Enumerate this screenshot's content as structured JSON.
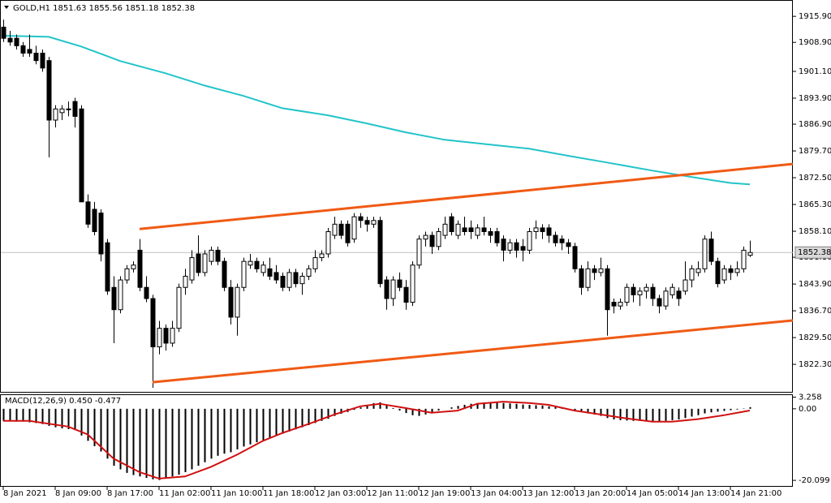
{
  "chart_data": [
    {
      "type": "candlestick",
      "title": "GOLD,H1  1851.63 1855.56 1851.18 1852.38",
      "up_color": "#ffffff",
      "down_color": "#000000",
      "edge_color": "#000000",
      "ohlc": [
        [
          1913,
          1915,
          1909,
          1910
        ],
        [
          1910,
          1912,
          1908,
          1909
        ],
        [
          1910,
          1911,
          1907,
          1908
        ],
        [
          1908,
          1909,
          1905,
          1906
        ],
        [
          1907,
          1911,
          1905,
          1906
        ],
        [
          1906,
          1908,
          1903,
          1904
        ],
        [
          1906,
          1907,
          1901,
          1902
        ],
        [
          1904,
          1905,
          1878,
          1888
        ],
        [
          1888,
          1892,
          1886,
          1891
        ],
        [
          1890,
          1892,
          1888,
          1891
        ],
        [
          1891,
          1893,
          1889,
          1891
        ],
        [
          1893,
          1894,
          1886,
          1889
        ],
        [
          1891,
          1892,
          1866,
          1866
        ],
        [
          1866,
          1868,
          1859,
          1860
        ],
        [
          1864,
          1866,
          1857,
          1858
        ],
        [
          1863,
          1864,
          1850,
          1852
        ],
        [
          1855,
          1856,
          1841,
          1842
        ],
        [
          1843,
          1846,
          1828,
          1837
        ],
        [
          1837,
          1846,
          1836,
          1845
        ],
        [
          1845,
          1849,
          1844,
          1848
        ],
        [
          1848,
          1850,
          1847,
          1849
        ],
        [
          1853,
          1856,
          1842,
          1843
        ],
        [
          1843,
          1846,
          1839,
          1840
        ],
        [
          1840,
          1841,
          1816,
          1827
        ],
        [
          1827,
          1834,
          1825,
          1832
        ],
        [
          1832,
          1833,
          1826,
          1828
        ],
        [
          1828,
          1834,
          1827,
          1832
        ],
        [
          1832,
          1844,
          1831,
          1843
        ],
        [
          1843,
          1848,
          1841,
          1846
        ],
        [
          1845,
          1853,
          1844,
          1851
        ],
        [
          1852,
          1857,
          1846,
          1847
        ],
        [
          1847,
          1853,
          1846,
          1852
        ],
        [
          1850,
          1854,
          1849,
          1853
        ],
        [
          1853,
          1854,
          1849,
          1850
        ],
        [
          1850,
          1851,
          1842,
          1843
        ],
        [
          1843,
          1845,
          1833,
          1835
        ],
        [
          1835,
          1844,
          1830,
          1843
        ],
        [
          1843,
          1851,
          1842,
          1850
        ],
        [
          1849,
          1852,
          1848,
          1850
        ],
        [
          1850,
          1851,
          1847,
          1848
        ],
        [
          1847,
          1850,
          1846,
          1849
        ],
        [
          1848,
          1851,
          1845,
          1846
        ],
        [
          1847,
          1849,
          1844,
          1845
        ],
        [
          1846,
          1847,
          1842,
          1843
        ],
        [
          1843,
          1848,
          1842,
          1847
        ],
        [
          1847,
          1848,
          1843,
          1844
        ],
        [
          1844,
          1847,
          1841,
          1846
        ],
        [
          1846,
          1849,
          1845,
          1848
        ],
        [
          1848,
          1853,
          1847,
          1851
        ],
        [
          1851,
          1853,
          1850,
          1852
        ],
        [
          1852,
          1859,
          1851,
          1858
        ],
        [
          1857,
          1862,
          1856,
          1860
        ],
        [
          1860,
          1861,
          1856,
          1857
        ],
        [
          1860,
          1861,
          1854,
          1855
        ],
        [
          1856,
          1863,
          1855,
          1862
        ],
        [
          1862,
          1863,
          1859,
          1861
        ],
        [
          1861,
          1862,
          1858,
          1860
        ],
        [
          1860,
          1862,
          1859,
          1861
        ],
        [
          1861,
          1862,
          1843,
          1844
        ],
        [
          1845,
          1846,
          1837,
          1840
        ],
        [
          1840,
          1846,
          1838,
          1845
        ],
        [
          1845,
          1847,
          1842,
          1843
        ],
        [
          1843,
          1845,
          1837,
          1839
        ],
        [
          1839,
          1850,
          1838,
          1849
        ],
        [
          1849,
          1857,
          1848,
          1856
        ],
        [
          1856,
          1858,
          1854,
          1857
        ],
        [
          1857,
          1858,
          1852,
          1854
        ],
        [
          1854,
          1859,
          1853,
          1858
        ],
        [
          1857,
          1862,
          1856,
          1860
        ],
        [
          1862,
          1863,
          1857,
          1858
        ],
        [
          1857,
          1861,
          1856,
          1860
        ],
        [
          1859,
          1862,
          1857,
          1858
        ],
        [
          1859,
          1861,
          1856,
          1858
        ],
        [
          1857,
          1860,
          1856,
          1859
        ],
        [
          1859,
          1862,
          1857,
          1858
        ],
        [
          1858,
          1859,
          1855,
          1857
        ],
        [
          1858,
          1859,
          1854,
          1855
        ],
        [
          1856,
          1857,
          1850,
          1853
        ],
        [
          1853,
          1856,
          1852,
          1855
        ],
        [
          1855,
          1856,
          1851,
          1853
        ],
        [
          1854,
          1856,
          1850,
          1853
        ],
        [
          1853,
          1859,
          1852,
          1858
        ],
        [
          1858,
          1861,
          1856,
          1859
        ],
        [
          1859,
          1860,
          1856,
          1858
        ],
        [
          1859,
          1860,
          1855,
          1857
        ],
        [
          1857,
          1858,
          1854,
          1855
        ],
        [
          1856,
          1857,
          1853,
          1855
        ],
        [
          1855,
          1856,
          1852,
          1854
        ],
        [
          1854,
          1855,
          1847,
          1848
        ],
        [
          1848,
          1849,
          1841,
          1843
        ],
        [
          1843,
          1850,
          1842,
          1848
        ],
        [
          1848,
          1849,
          1845,
          1847
        ],
        [
          1847,
          1851,
          1846,
          1848
        ],
        [
          1848,
          1849,
          1830,
          1837
        ],
        [
          1839,
          1840,
          1836,
          1838
        ],
        [
          1838,
          1840,
          1837,
          1839
        ],
        [
          1839,
          1844,
          1838,
          1843
        ],
        [
          1843,
          1844,
          1839,
          1841
        ],
        [
          1841,
          1843,
          1838,
          1842
        ],
        [
          1842,
          1844,
          1840,
          1843
        ],
        [
          1843,
          1844,
          1838,
          1840
        ],
        [
          1840,
          1841,
          1836,
          1838
        ],
        [
          1838,
          1843,
          1837,
          1842
        ],
        [
          1841,
          1844,
          1840,
          1843
        ],
        [
          1842,
          1843,
          1838,
          1840
        ],
        [
          1842,
          1850,
          1841,
          1845
        ],
        [
          1845,
          1849,
          1843,
          1848
        ],
        [
          1847,
          1850,
          1846,
          1848
        ],
        [
          1848,
          1857,
          1847,
          1856
        ],
        [
          1856,
          1858,
          1849,
          1850
        ],
        [
          1850,
          1851,
          1843,
          1844
        ],
        [
          1845,
          1849,
          1844,
          1848
        ],
        [
          1848,
          1849,
          1845,
          1847
        ],
        [
          1847,
          1850,
          1846,
          1848
        ],
        [
          1848,
          1854,
          1847,
          1853
        ],
        [
          1851.63,
          1855.56,
          1851.18,
          1852.38
        ]
      ],
      "last_price": 1852.38,
      "ma": {
        "color": "#22c4c9",
        "x": [
          0,
          7,
          12,
          18,
          25,
          31,
          37,
          43,
          50,
          56,
          62,
          68,
          75,
          81,
          87,
          93,
          100,
          106,
          112,
          115
        ],
        "values": [
          1910.7,
          1910.4,
          1907.8,
          1903.9,
          1900.6,
          1897.3,
          1894.5,
          1891.2,
          1889.3,
          1887.1,
          1884.7,
          1882.7,
          1881.4,
          1880.3,
          1878.4,
          1876.6,
          1874.4,
          1872.7,
          1871.1,
          1870.7
        ]
      },
      "trendlines": [
        {
          "color": "#f05a14",
          "x": [
            21,
            121.6
          ],
          "values": [
            1858.7,
            1876.2
          ]
        },
        {
          "color": "#f05a14",
          "x": [
            23,
            121.6
          ],
          "values": [
            1817.5,
            1834.1
          ]
        }
      ],
      "xlim": [
        -0.5,
        121.625
      ],
      "ylim": [
        1814.9,
        1920.3
      ],
      "yticks": [
        {
          "value": 1915.9,
          "label": "1915.90"
        },
        {
          "value": 1908.9,
          "label": "1908.90"
        },
        {
          "value": 1901.1,
          "label": "1901.10"
        },
        {
          "value": 1893.9,
          "label": "1893.90"
        },
        {
          "value": 1886.9,
          "label": "1886.90"
        },
        {
          "value": 1879.7,
          "label": "1879.70"
        },
        {
          "value": 1872.5,
          "label": "1872.50"
        },
        {
          "value": 1865.3,
          "label": "1865.30"
        },
        {
          "value": 1858.1,
          "label": "1858.10"
        },
        {
          "value": 1851.1,
          "label": "1851.10"
        },
        {
          "value": 1843.9,
          "label": "1843.90"
        },
        {
          "value": 1836.7,
          "label": "1836.70"
        },
        {
          "value": 1829.5,
          "label": "1829.50"
        },
        {
          "value": 1822.3,
          "label": "1822.30"
        }
      ],
      "xticks": [
        {
          "value": 0,
          "label": "8 Jan 2021"
        },
        {
          "value": 8,
          "label": "8 Jan 09:00"
        },
        {
          "value": 16,
          "label": "8 Jan 17:00"
        },
        {
          "value": 24,
          "label": "11 Jan 02:00"
        },
        {
          "value": 32,
          "label": "11 Jan 10:00"
        },
        {
          "value": 40,
          "label": "11 Jan 18:00"
        },
        {
          "value": 48,
          "label": "12 Jan 03:00"
        },
        {
          "value": 56,
          "label": "12 Jan 11:00"
        },
        {
          "value": 64,
          "label": "12 Jan 19:00"
        },
        {
          "value": 72,
          "label": "13 Jan 04:00"
        },
        {
          "value": 80,
          "label": "13 Jan 12:00"
        },
        {
          "value": 88,
          "label": "13 Jan 20:00"
        },
        {
          "value": 96,
          "label": "14 Jan 05:00"
        },
        {
          "value": 104,
          "label": "14 Jan 13:00"
        },
        {
          "value": 112,
          "label": "14 Jan 21:00"
        }
      ]
    },
    {
      "type": "macd",
      "title": "MACD(12,26,9) 0.450 -0.477",
      "color": "#000000",
      "values": [
        -3.4,
        -3.5,
        -3.6,
        -3.6,
        -3.8,
        -4.0,
        -4.3,
        -4.8,
        -5.2,
        -5.5,
        -5.7,
        -6.0,
        -7.5,
        -9.0,
        -10.5,
        -12.0,
        -14.0,
        -16.0,
        -17.0,
        -18.0,
        -18.6,
        -19.0,
        -19.4,
        -19.8,
        -20.0,
        -19.6,
        -19.0,
        -18.5,
        -17.8,
        -17.0,
        -16.0,
        -15.0,
        -14.0,
        -13.2,
        -12.6,
        -12.2,
        -11.4,
        -10.6,
        -10.0,
        -9.4,
        -8.8,
        -8.2,
        -7.6,
        -7.0,
        -6.4,
        -5.8,
        -5.2,
        -4.6,
        -4.0,
        -3.4,
        -2.8,
        -2.0,
        -1.4,
        -0.9,
        -0.3,
        0.4,
        1.0,
        1.6,
        1.8,
        1.2,
        0.2,
        -0.5,
        -1.2,
        -1.8,
        -2.0,
        -1.6,
        -1.0,
        -0.5,
        0.0,
        0.4,
        0.8,
        1.1,
        1.4,
        1.6,
        1.8,
        1.8,
        1.7,
        1.6,
        1.5,
        1.4,
        1.2,
        1.1,
        1.0,
        0.9,
        0.7,
        0.5,
        0.3,
        0.0,
        -0.4,
        -0.9,
        -1.3,
        -1.6,
        -2.0,
        -2.6,
        -3.0,
        -3.2,
        -3.3,
        -3.4,
        -3.4,
        -3.5,
        -3.5,
        -3.5,
        -3.4,
        -3.2,
        -3.0,
        -2.6,
        -2.2,
        -1.8,
        -1.3,
        -1.0,
        -0.8,
        -0.6,
        -0.4,
        -0.2,
        0.1,
        0.45
      ],
      "signal": {
        "color": "#d01010",
        "x": [
          0,
          4,
          10,
          13,
          17,
          21,
          24,
          28,
          32,
          36,
          40,
          43,
          47,
          51,
          55,
          58,
          62,
          66,
          70,
          73,
          77,
          81,
          84,
          88,
          92,
          96,
          100,
          103,
          107,
          111,
          115
        ],
        "values": [
          -3.4,
          -3.4,
          -5.0,
          -7.2,
          -14.0,
          -17.8,
          -19.6,
          -19.0,
          -16.3,
          -12.9,
          -9.0,
          -6.8,
          -4.3,
          -1.6,
          0.7,
          1.4,
          0.2,
          -1.1,
          -0.5,
          1.4,
          2.0,
          1.6,
          1.1,
          -0.5,
          -1.6,
          -2.7,
          -3.6,
          -3.6,
          -2.9,
          -1.8,
          -0.477
        ]
      },
      "xlim": [
        -0.5,
        121.625
      ],
      "ylim": [
        -21.9,
        3.84
      ],
      "yticks": [
        3.258,
        {
          "value": 0,
          "label": "0.00"
        },
        -20.099
      ]
    }
  ]
}
